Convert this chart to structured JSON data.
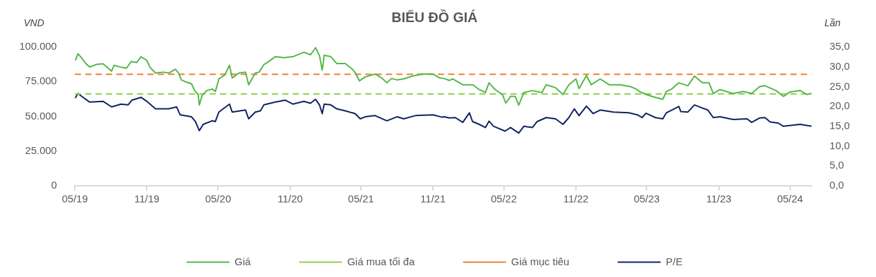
{
  "chart_data": {
    "type": "line",
    "title": "BIỂU ĐỒ GIÁ",
    "ylabel": "VND",
    "y2label": "Lần",
    "legend": "bottom",
    "xlim": [
      "2019-05-01",
      "2024-06-25"
    ],
    "xticks": [
      {
        "value": "2019-05-01",
        "label": "05/19"
      },
      {
        "value": "2019-11-01",
        "label": "11/19"
      },
      {
        "value": "2020-05-01",
        "label": "05/20"
      },
      {
        "value": "2020-11-01",
        "label": "11/20"
      },
      {
        "value": "2021-05-01",
        "label": "05/21"
      },
      {
        "value": "2021-11-01",
        "label": "11/21"
      },
      {
        "value": "2022-05-01",
        "label": "05/22"
      },
      {
        "value": "2022-11-01",
        "label": "11/22"
      },
      {
        "value": "2023-05-01",
        "label": "05/23"
      },
      {
        "value": "2023-11-01",
        "label": "11/23"
      },
      {
        "value": "2024-05-01",
        "label": "05/24"
      }
    ],
    "ylim": [
      0,
      100000
    ],
    "yticks": [
      {
        "value": 0,
        "label": "0"
      },
      {
        "value": 25000,
        "label": "25.000"
      },
      {
        "value": 50000,
        "label": "50.000"
      },
      {
        "value": 75000,
        "label": "75.000"
      },
      {
        "value": 100000,
        "label": "100.000"
      }
    ],
    "y2lim": [
      0,
      35
    ],
    "y2ticks": [
      {
        "value": 0,
        "label": "0,0"
      },
      {
        "value": 5,
        "label": "5,0"
      },
      {
        "value": 10,
        "label": "10,0"
      },
      {
        "value": 15,
        "label": "15,0"
      },
      {
        "value": 20,
        "label": "20,0"
      },
      {
        "value": 25,
        "label": "25,0"
      },
      {
        "value": 30,
        "label": "30,0"
      },
      {
        "value": 35,
        "label": "35,0"
      }
    ],
    "series": [
      {
        "name": "Giá",
        "color": "#52b848",
        "x": [
          "2019-05-02",
          "2019-05-09",
          "2019-05-18",
          "2019-05-29",
          "2019-06-08",
          "2019-06-25",
          "2019-07-12",
          "2019-08-03",
          "2019-08-09",
          "2019-08-27",
          "2019-09-10",
          "2019-09-22",
          "2019-10-06",
          "2019-10-17",
          "2019-11-01",
          "2019-11-09",
          "2019-11-23",
          "2019-12-13",
          "2019-12-27",
          "2020-01-13",
          "2020-01-21",
          "2020-01-28",
          "2020-02-08",
          "2020-02-23",
          "2020-03-02",
          "2020-03-11",
          "2020-03-14",
          "2020-03-21",
          "2020-04-02",
          "2020-04-16",
          "2020-04-24",
          "2020-05-03",
          "2020-05-18",
          "2020-05-30",
          "2020-06-06",
          "2020-06-23",
          "2020-07-10",
          "2020-07-18",
          "2020-08-04",
          "2020-08-14",
          "2020-08-26",
          "2020-08-31",
          "2020-09-24",
          "2020-10-16",
          "2020-11-08",
          "2020-12-06",
          "2020-12-23",
          "2021-01-05",
          "2021-01-15",
          "2021-01-22",
          "2021-01-27",
          "2021-02-13",
          "2021-02-28",
          "2021-03-22",
          "2021-04-09",
          "2021-04-17",
          "2021-04-27",
          "2021-05-12",
          "2021-06-06",
          "2021-06-23",
          "2021-07-06",
          "2021-07-18",
          "2021-08-01",
          "2021-08-18",
          "2021-09-10",
          "2021-10-04",
          "2021-11-01",
          "2021-11-18",
          "2021-11-29",
          "2021-12-13",
          "2021-12-21",
          "2022-01-16",
          "2022-02-11",
          "2022-02-27",
          "2022-03-15",
          "2022-03-24",
          "2022-04-09",
          "2022-04-27",
          "2022-05-06",
          "2022-05-18",
          "2022-05-30",
          "2022-06-08",
          "2022-06-21",
          "2022-07-13",
          "2022-08-06",
          "2022-08-17",
          "2022-09-10",
          "2022-09-29",
          "2022-10-14",
          "2022-11-01",
          "2022-11-09",
          "2022-11-28",
          "2022-12-10",
          "2023-01-02",
          "2023-01-25",
          "2023-02-22",
          "2023-03-21",
          "2023-04-07",
          "2023-04-12",
          "2023-04-29",
          "2023-05-23",
          "2023-06-11",
          "2023-06-20",
          "2023-07-05",
          "2023-07-22",
          "2023-08-14",
          "2023-08-31",
          "2023-09-20",
          "2023-10-07",
          "2023-10-18",
          "2023-11-04",
          "2023-12-08",
          "2024-01-02",
          "2024-01-24",
          "2024-02-13",
          "2024-02-27",
          "2024-03-26",
          "2024-04-14",
          "2024-04-30",
          "2024-05-27",
          "2024-06-13",
          "2024-06-25"
        ],
        "values": [
          90300,
          95100,
          92300,
          88100,
          85600,
          87400,
          87900,
          82600,
          86800,
          85400,
          84700,
          89500,
          88800,
          93000,
          90300,
          85400,
          81200,
          81900,
          81200,
          84000,
          81200,
          76300,
          74900,
          73500,
          68600,
          65800,
          58200,
          65100,
          68600,
          69700,
          67900,
          77000,
          79800,
          86800,
          77700,
          81200,
          81900,
          72800,
          81200,
          81900,
          87400,
          88100,
          93000,
          92300,
          93000,
          96200,
          94400,
          99500,
          93700,
          83300,
          94000,
          93000,
          88100,
          88100,
          84000,
          81200,
          75600,
          78400,
          80500,
          77700,
          74200,
          77300,
          76300,
          77000,
          79100,
          80500,
          80500,
          77700,
          77300,
          75900,
          77000,
          72800,
          72800,
          69300,
          67200,
          74200,
          69300,
          65800,
          59600,
          64400,
          64400,
          58200,
          67200,
          68600,
          67200,
          72800,
          70700,
          65800,
          72800,
          77000,
          70000,
          79500,
          72800,
          77000,
          72800,
          72800,
          71400,
          69300,
          67900,
          65800,
          63700,
          62300,
          67900,
          70000,
          74200,
          72100,
          79100,
          74200,
          74200,
          66500,
          69300,
          66500,
          67900,
          66500,
          71400,
          72100,
          68600,
          64400,
          67500,
          68600,
          65800,
          66500
        ]
      },
      {
        "name": "Giá mua tối đa",
        "color": "#92d050",
        "line_style": "dashed",
        "x": [
          "2019-05-01",
          "2024-06-25"
        ],
        "values": [
          66200,
          66200
        ]
      },
      {
        "name": "Giá mục tiêu",
        "color": "#ed7d31",
        "line_style": "dashed",
        "x": [
          "2019-05-01",
          "2024-06-25"
        ],
        "values": [
          80300,
          80300
        ]
      },
      {
        "name": "P/E",
        "color": "#0d2260",
        "axis": "y2",
        "x": [
          "2019-05-02",
          "2019-05-09",
          "2019-05-18",
          "2019-06-08",
          "2019-07-12",
          "2019-08-03",
          "2019-08-27",
          "2019-09-14",
          "2019-09-24",
          "2019-10-17",
          "2019-11-01",
          "2019-11-23",
          "2019-12-27",
          "2020-01-16",
          "2020-01-25",
          "2020-02-23",
          "2020-03-04",
          "2020-03-14",
          "2020-03-24",
          "2020-04-16",
          "2020-04-24",
          "2020-05-03",
          "2020-05-30",
          "2020-06-06",
          "2020-07-10",
          "2020-07-18",
          "2020-08-04",
          "2020-08-17",
          "2020-08-26",
          "2020-09-24",
          "2020-10-19",
          "2020-11-08",
          "2020-12-06",
          "2020-12-23",
          "2021-01-05",
          "2021-01-15",
          "2021-01-22",
          "2021-01-27",
          "2021-02-13",
          "2021-02-28",
          "2021-03-22",
          "2021-04-16",
          "2021-04-29",
          "2021-05-12",
          "2021-06-06",
          "2021-07-06",
          "2021-08-01",
          "2021-08-18",
          "2021-09-17",
          "2021-11-01",
          "2021-11-24",
          "2021-11-29",
          "2021-12-13",
          "2021-12-28",
          "2022-01-16",
          "2022-02-02",
          "2022-02-10",
          "2022-02-27",
          "2022-03-15",
          "2022-03-24",
          "2022-04-05",
          "2022-05-04",
          "2022-05-18",
          "2022-06-08",
          "2022-06-21",
          "2022-07-13",
          "2022-07-25",
          "2022-08-17",
          "2022-09-10",
          "2022-09-29",
          "2022-10-14",
          "2022-10-28",
          "2022-11-09",
          "2022-11-28",
          "2022-12-15",
          "2023-01-02",
          "2023-02-05",
          "2023-03-16",
          "2023-04-07",
          "2023-04-19",
          "2023-04-29",
          "2023-05-23",
          "2023-06-11",
          "2023-06-20",
          "2023-07-22",
          "2023-07-27",
          "2023-08-14",
          "2023-08-31",
          "2023-09-20",
          "2023-10-04",
          "2023-10-18",
          "2023-11-04",
          "2023-12-08",
          "2024-01-12",
          "2024-01-24",
          "2024-02-13",
          "2024-02-27",
          "2024-03-11",
          "2024-04-01",
          "2024-04-14",
          "2024-05-27",
          "2024-06-25"
        ],
        "values": [
          22.1,
          23.3,
          22.6,
          21.1,
          21.3,
          19.9,
          20.6,
          20.4,
          21.6,
          22.3,
          21.3,
          19.4,
          19.4,
          19.9,
          17.9,
          17.4,
          16.2,
          13.9,
          15.5,
          16.4,
          16.2,
          18.6,
          20.6,
          18.6,
          19.1,
          16.9,
          18.6,
          18.9,
          20.4,
          21.1,
          21.6,
          20.6,
          21.3,
          20.8,
          21.8,
          20.4,
          18.2,
          20.6,
          20.4,
          19.4,
          18.9,
          18.2,
          16.9,
          17.4,
          17.7,
          16.4,
          17.4,
          16.9,
          17.7,
          17.9,
          17.3,
          17.4,
          17.1,
          17.2,
          16.0,
          18.4,
          16.2,
          15.5,
          14.7,
          16.3,
          15.0,
          13.8,
          14.7,
          13.3,
          15.0,
          14.7,
          16.2,
          17.2,
          16.9,
          15.5,
          17.2,
          19.4,
          17.7,
          20.1,
          18.2,
          19.1,
          18.6,
          18.4,
          17.9,
          17.2,
          18.3,
          17.2,
          16.9,
          18.4,
          20.0,
          18.7,
          18.6,
          20.4,
          19.6,
          19.1,
          17.2,
          17.4,
          16.7,
          16.9,
          16.0,
          17.1,
          17.2,
          16.1,
          15.8,
          15.0,
          15.5,
          15.0
        ]
      }
    ]
  }
}
